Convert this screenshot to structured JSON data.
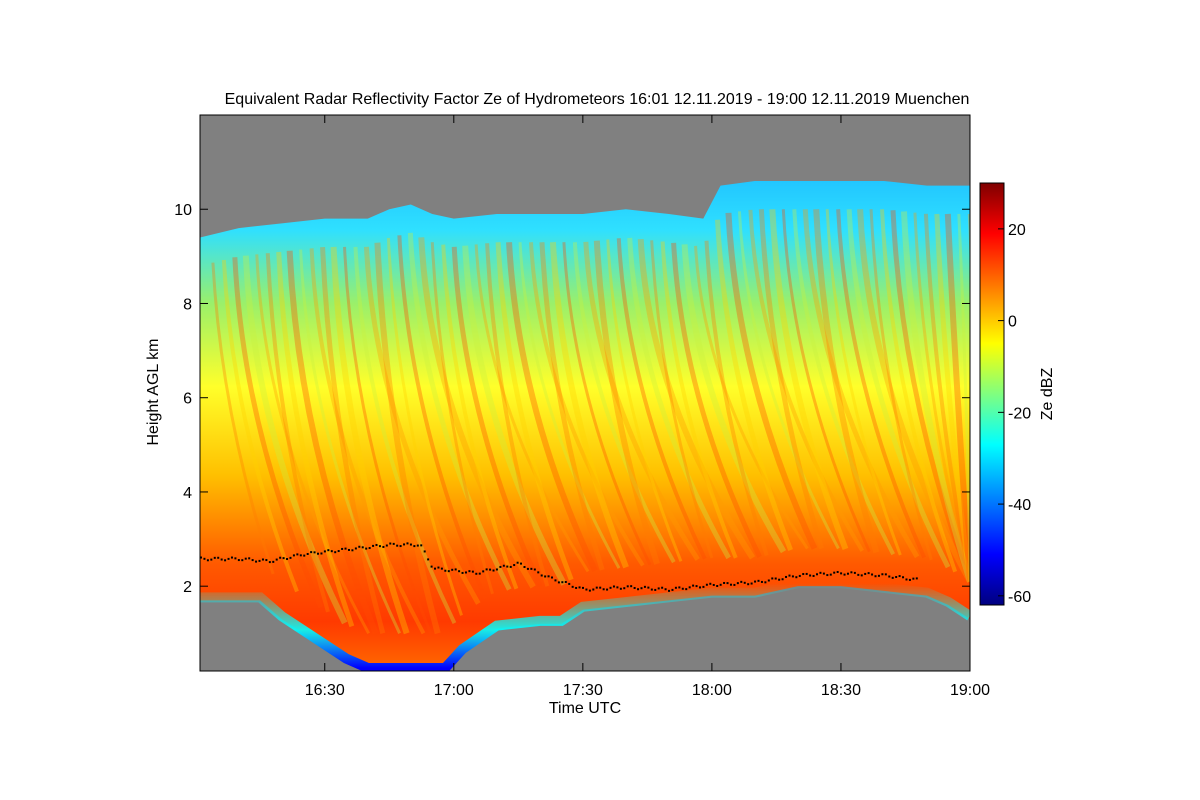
{
  "chart_data": {
    "type": "heatmap",
    "title": "Equivalent Radar Reflectivity Factor Ze of Hydrometeors   16:01 12.11.2019 - 19:00 12.11.2019 Muenchen",
    "xlabel": "Time UTC",
    "ylabel": "Height AGL km",
    "x_ticks": [
      "16:30",
      "17:00",
      "17:30",
      "18:00",
      "18:30",
      "19:00"
    ],
    "x_tick_minutes": [
      30,
      60,
      90,
      120,
      150,
      180
    ],
    "xlim_minutes": [
      1,
      180
    ],
    "y_ticks": [
      2,
      4,
      6,
      8,
      10
    ],
    "ylim": [
      0.2,
      12
    ],
    "colorbar": {
      "label": "Ze dBZ",
      "ticks": [
        20,
        0,
        -20,
        -40,
        -60
      ],
      "range": [
        -62,
        30
      ],
      "colormap": [
        "#00007f",
        "#0000ff",
        "#00ffff",
        "#ffff00",
        "#ff0000",
        "#7f0000"
      ]
    },
    "no_data_color": "#808080",
    "echo_top_km": [
      [
        1,
        9.4
      ],
      [
        10,
        9.6
      ],
      [
        20,
        9.7
      ],
      [
        30,
        9.8
      ],
      [
        40,
        9.8
      ],
      [
        45,
        10.0
      ],
      [
        50,
        10.1
      ],
      [
        55,
        9.9
      ],
      [
        60,
        9.8
      ],
      [
        70,
        9.9
      ],
      [
        80,
        9.9
      ],
      [
        90,
        9.9
      ],
      [
        100,
        10.0
      ],
      [
        110,
        9.9
      ],
      [
        118,
        9.8
      ],
      [
        122,
        10.5
      ],
      [
        130,
        10.6
      ],
      [
        140,
        10.6
      ],
      [
        150,
        10.6
      ],
      [
        160,
        10.6
      ],
      [
        170,
        10.5
      ],
      [
        180,
        10.5
      ]
    ],
    "echo_base_km": [
      [
        1,
        1.7
      ],
      [
        15,
        1.7
      ],
      [
        20,
        1.3
      ],
      [
        25,
        1.0
      ],
      [
        30,
        0.7
      ],
      [
        35,
        0.4
      ],
      [
        40,
        0.2
      ],
      [
        50,
        0.2
      ],
      [
        58,
        0.2
      ],
      [
        62,
        0.6
      ],
      [
        70,
        1.1
      ],
      [
        80,
        1.2
      ],
      [
        85,
        1.2
      ],
      [
        90,
        1.5
      ],
      [
        100,
        1.6
      ],
      [
        110,
        1.7
      ],
      [
        120,
        1.8
      ],
      [
        130,
        1.8
      ],
      [
        140,
        2.0
      ],
      [
        150,
        2.0
      ],
      [
        160,
        1.9
      ],
      [
        170,
        1.8
      ],
      [
        175,
        1.6
      ],
      [
        180,
        1.3
      ]
    ],
    "bright_band_km": [
      [
        1,
        2.6
      ],
      [
        10,
        2.6
      ],
      [
        17,
        2.55
      ],
      [
        25,
        2.7
      ],
      [
        35,
        2.8
      ],
      [
        45,
        2.9
      ],
      [
        52,
        2.9
      ],
      [
        55,
        2.4
      ],
      [
        65,
        2.3
      ],
      [
        75,
        2.5
      ],
      [
        82,
        2.2
      ],
      [
        90,
        1.95
      ],
      [
        100,
        2.0
      ],
      [
        110,
        1.95
      ],
      [
        120,
        2.05
      ],
      [
        130,
        2.1
      ],
      [
        140,
        2.25
      ],
      [
        150,
        2.3
      ],
      [
        160,
        2.25
      ],
      [
        168,
        2.15
      ]
    ]
  }
}
